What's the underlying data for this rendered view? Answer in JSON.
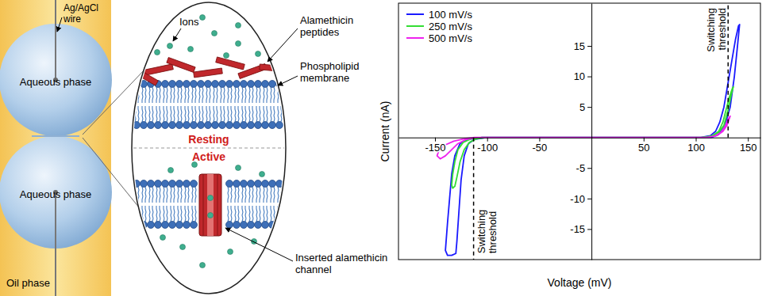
{
  "diagram": {
    "wire": "Ag/AgCl wire",
    "top_droplet": "Aqueous phase",
    "bottom_droplet": "Aqueous phase",
    "oil": "Oil phase",
    "ions": "Ions",
    "peptides": "Alamethicin peptides",
    "membrane": "Phospholipid membrane",
    "resting": "Resting",
    "active": "Active",
    "channel": "Inserted alamethicin channel"
  },
  "chart_data": {
    "type": "line",
    "x_label": "Voltage (mV)",
    "y_label": "Current (nA)",
    "xlim": [
      -185,
      162
    ],
    "ylim": [
      -20,
      22
    ],
    "xticks": [
      -150,
      -100,
      -50,
      50,
      100,
      150
    ],
    "yticks": [
      -15,
      -10,
      -5,
      5,
      10,
      15
    ],
    "legend": "upper left",
    "series": [
      {
        "name": "100 mV/s",
        "color": "#1a1aff",
        "x": [
          0,
          100,
          115,
          122,
          128,
          133,
          137,
          140,
          142,
          141,
          138,
          134,
          130,
          127,
          123,
          119,
          114,
          105,
          0,
          -100,
          -112,
          -118,
          -122,
          -125,
          -127,
          -129,
          -130,
          -134,
          -138,
          -140,
          -138,
          -136,
          -134,
          -131,
          -126,
          -118,
          -105,
          0
        ],
        "values": [
          0,
          0,
          0,
          0.5,
          2,
          5,
          10,
          15,
          18.5,
          18.3,
          16,
          12,
          8,
          5,
          2.5,
          1,
          0.3,
          0,
          0,
          0,
          -0.3,
          -1,
          -3,
          -7,
          -12,
          -17,
          -19,
          -19.3,
          -19.3,
          -18.5,
          -14,
          -10,
          -6,
          -3,
          -1,
          -0.3,
          0,
          0
        ]
      },
      {
        "name": "250 mV/s",
        "color": "#33dd33",
        "x": [
          0,
          105,
          115,
          122,
          127,
          131,
          134,
          136,
          135,
          132,
          129,
          126,
          122,
          116,
          108,
          0,
          -100,
          -110,
          -117,
          -122,
          -126,
          -129,
          -131,
          -133,
          -134,
          -133,
          -131,
          -128,
          -123,
          -115,
          -105,
          0
        ],
        "values": [
          0,
          0,
          0.2,
          0.8,
          2,
          4.5,
          7,
          8.3,
          8,
          6.5,
          4.5,
          2.5,
          1,
          0.3,
          0,
          0,
          0,
          -0.2,
          -0.8,
          -2,
          -4,
          -6.5,
          -8,
          -8.3,
          -7.8,
          -6,
          -4,
          -2,
          -0.8,
          -0.2,
          0,
          0
        ]
      },
      {
        "name": "500 mV/s",
        "color": "#ee22ee",
        "x": [
          0,
          110,
          118,
          124,
          128,
          131,
          133,
          132,
          130,
          126,
          120,
          112,
          0,
          -110,
          -120,
          -128,
          -134,
          -140,
          -145,
          -148,
          -146,
          -140,
          -132,
          -122,
          -112,
          0
        ],
        "values": [
          0,
          0,
          0.2,
          0.8,
          1.8,
          3,
          3.5,
          3,
          2,
          1,
          0.3,
          0,
          0,
          0,
          -0.3,
          -1,
          -2,
          -3,
          -3.5,
          -3,
          -2,
          -1.2,
          -0.6,
          -0.2,
          0,
          0
        ]
      }
    ],
    "annotations": [
      {
        "text": "Switching threshold",
        "x": 131
      },
      {
        "text": "Switching threshold",
        "x": -113
      }
    ]
  }
}
